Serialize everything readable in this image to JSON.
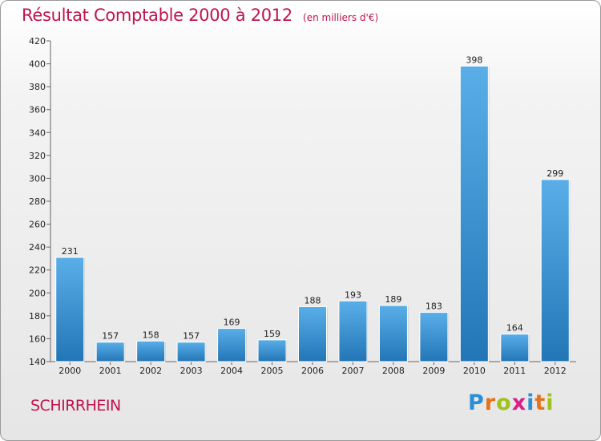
{
  "title": "Résultat Comptable 2000 à 2012",
  "subtitle": "(en milliers d'€)",
  "town": "SCHIRRHEIN",
  "logo": {
    "text": "Proxiti",
    "letters": [
      {
        "ch": "P",
        "color": "#2a8fd6"
      },
      {
        "ch": "r",
        "color": "#e5731c"
      },
      {
        "ch": "o",
        "color": "#9fc21c"
      },
      {
        "ch": "x",
        "color": "#d9208a"
      },
      {
        "ch": "i",
        "color": "#2a8fd6"
      },
      {
        "ch": "t",
        "color": "#e5731c"
      },
      {
        "ch": "i",
        "color": "#9fc21c"
      }
    ]
  },
  "colors": {
    "accent": "#c0144c",
    "bar_top": "#5aaee8",
    "bar_bottom": "#2276b6"
  },
  "chart_data": {
    "type": "bar",
    "title": "Résultat Comptable 2000 à 2012",
    "subtitle": "(en milliers d'€)",
    "categories": [
      "2000",
      "2001",
      "2002",
      "2003",
      "2004",
      "2005",
      "2006",
      "2007",
      "2008",
      "2009",
      "2010",
      "2011",
      "2012"
    ],
    "values": [
      231,
      157,
      158,
      157,
      169,
      159,
      188,
      193,
      189,
      183,
      398,
      164,
      299
    ],
    "ylim": [
      140,
      420
    ],
    "yticks": [
      140,
      160,
      180,
      200,
      220,
      240,
      260,
      280,
      300,
      320,
      340,
      360,
      380,
      400,
      420
    ],
    "grid": false,
    "data_labels": true
  }
}
